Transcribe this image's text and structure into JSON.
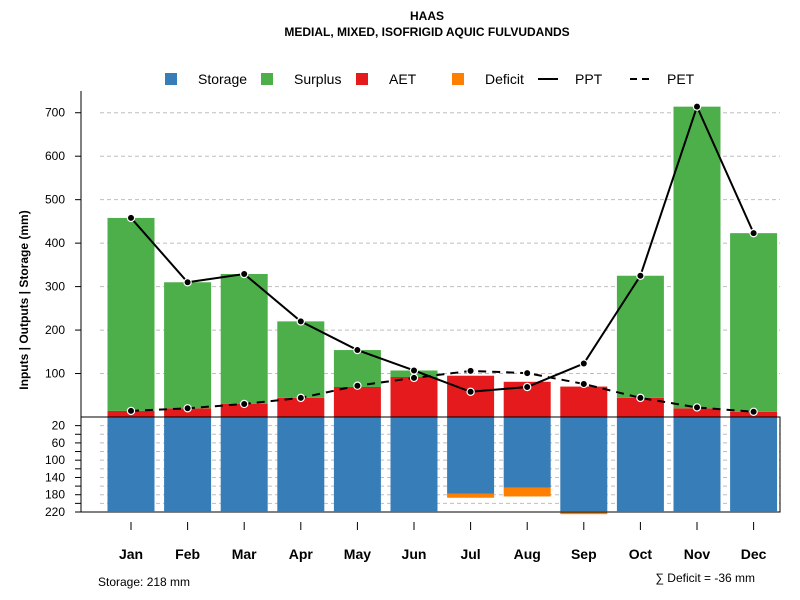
{
  "chart_data": {
    "type": "bar",
    "title": "HAAS",
    "subtitle": "MEDIAL, MIXED, ISOFRIGID AQUIC FULVUDANDS",
    "ylabel": "Inputs | Outputs | Storage    (mm)",
    "categories": [
      "Jan",
      "Feb",
      "Mar",
      "Apr",
      "May",
      "Jun",
      "Jul",
      "Aug",
      "Sep",
      "Oct",
      "Nov",
      "Dec"
    ],
    "upper_ylim": [
      0,
      750
    ],
    "upper_ticks": [
      100,
      200,
      300,
      400,
      500,
      600,
      700
    ],
    "lower_ylim": [
      0,
      220
    ],
    "lower_ticks": [
      20,
      40,
      60,
      80,
      100,
      120,
      140,
      160,
      180,
      200,
      220
    ],
    "lower_tick_labels": [
      "20",
      "60",
      "100",
      "140",
      "180",
      "220"
    ],
    "legend": [
      {
        "label": "Storage",
        "kind": "box",
        "color": "#377EB8"
      },
      {
        "label": "Surplus",
        "kind": "box",
        "color": "#4DAF4A"
      },
      {
        "label": "AET",
        "kind": "box",
        "color": "#E41A1C"
      },
      {
        "label": "Deficit",
        "kind": "box",
        "color": "#FF7F00"
      },
      {
        "label": "PPT",
        "kind": "solid",
        "color": "#000000"
      },
      {
        "label": "PET",
        "kind": "dashed",
        "color": "#000000"
      }
    ],
    "series": [
      {
        "name": "AET",
        "values": [
          14,
          20,
          30,
          44,
          69,
          92,
          95,
          81,
          70,
          44,
          20,
          12
        ]
      },
      {
        "name": "Surplus",
        "values": [
          444,
          290,
          299,
          176,
          85,
          15,
          0,
          0,
          0,
          281,
          694,
          411
        ]
      },
      {
        "name": "PPT",
        "values": [
          458,
          310,
          329,
          220,
          154,
          107,
          58,
          69,
          123,
          325,
          714,
          423
        ]
      },
      {
        "name": "PET",
        "values": [
          14,
          20,
          30,
          44,
          72,
          90,
          106,
          101,
          76,
          44,
          22,
          12
        ]
      },
      {
        "name": "Storage",
        "values": [
          218,
          218,
          218,
          218,
          218,
          218,
          178,
          164,
          218,
          218,
          218,
          218
        ]
      },
      {
        "name": "Deficit",
        "values": [
          0,
          0,
          0,
          0,
          0,
          0,
          9,
          20,
          7,
          0,
          0,
          0
        ]
      }
    ],
    "storage_label": "Storage: 218 mm",
    "deficit_label": "∑ Deficit = -36 mm",
    "colors": {
      "grid": "#BEBEBE",
      "storage": "#377EB8",
      "surplus": "#4DAF4A",
      "aet": "#E41A1C",
      "deficit": "#FF7F00"
    }
  }
}
